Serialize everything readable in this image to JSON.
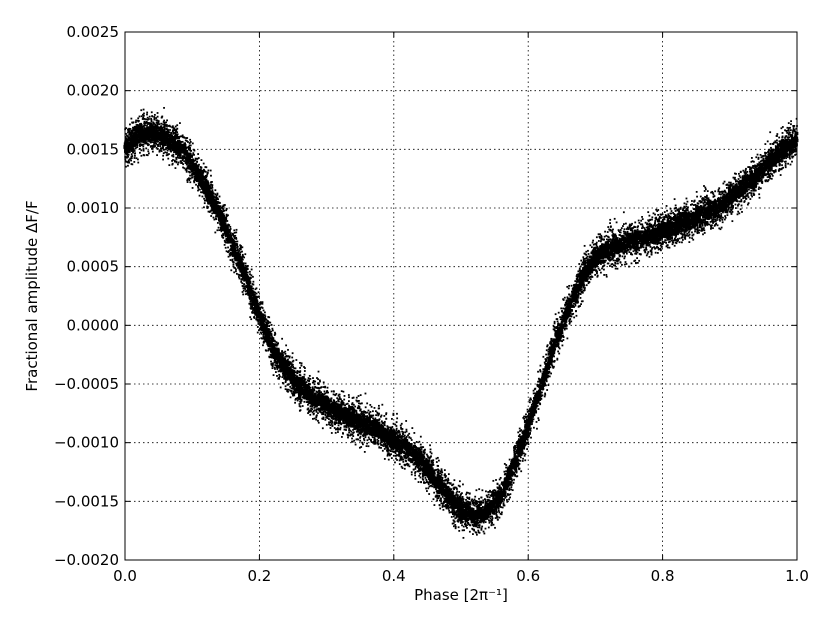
{
  "chart_data": {
    "type": "scatter",
    "title": "",
    "xlabel": "Phase [2π⁻¹]",
    "ylabel": "Fractional amplitude ΔF/F",
    "xlim": [
      0.0,
      1.0
    ],
    "ylim": [
      -0.002,
      0.0025
    ],
    "x_ticks": [
      "0.0",
      "0.2",
      "0.4",
      "0.6",
      "0.8",
      "1.0"
    ],
    "y_ticks": [
      "−0.0020",
      "−0.0015",
      "−0.0010",
      "−0.0005",
      "0.0000",
      "0.0005",
      "0.0010",
      "0.0015",
      "0.0020",
      "0.0025"
    ],
    "grid": true,
    "legend": "none",
    "point_color": "#000000",
    "series": [
      {
        "x": [
          0.0,
          0.02,
          0.04,
          0.06,
          0.08,
          0.1,
          0.12,
          0.14,
          0.16,
          0.18,
          0.2,
          0.22,
          0.24,
          0.26,
          0.28,
          0.3,
          0.32,
          0.34,
          0.36,
          0.38,
          0.4,
          0.42,
          0.44,
          0.46,
          0.48,
          0.5,
          0.52,
          0.54,
          0.56,
          0.58,
          0.6,
          0.62,
          0.64,
          0.66,
          0.68,
          0.7,
          0.72,
          0.74,
          0.76,
          0.78,
          0.8,
          0.82,
          0.84,
          0.86,
          0.88,
          0.9,
          0.92,
          0.94,
          0.96,
          0.98,
          1.0
        ],
        "y": [
          0.00152,
          0.00162,
          0.00164,
          0.0016,
          0.00152,
          0.00138,
          0.00118,
          0.00095,
          0.00068,
          0.0004,
          8e-05,
          -0.0002,
          -0.00038,
          -0.00052,
          -0.00062,
          -0.00068,
          -0.00075,
          -0.0008,
          -0.00084,
          -0.0009,
          -0.00098,
          -0.00105,
          -0.00115,
          -0.0013,
          -0.00145,
          -0.00158,
          -0.00162,
          -0.00158,
          -0.00145,
          -0.00118,
          -0.00085,
          -0.0005,
          -0.00015,
          0.00015,
          0.0004,
          0.00058,
          0.00065,
          0.0007,
          0.00073,
          0.00077,
          0.0008,
          0.00085,
          0.0009,
          0.00095,
          0.001,
          0.00108,
          0.00118,
          0.00128,
          0.0014,
          0.0015,
          0.00158
        ],
        "scatter_spread": 0.0001
      }
    ]
  }
}
